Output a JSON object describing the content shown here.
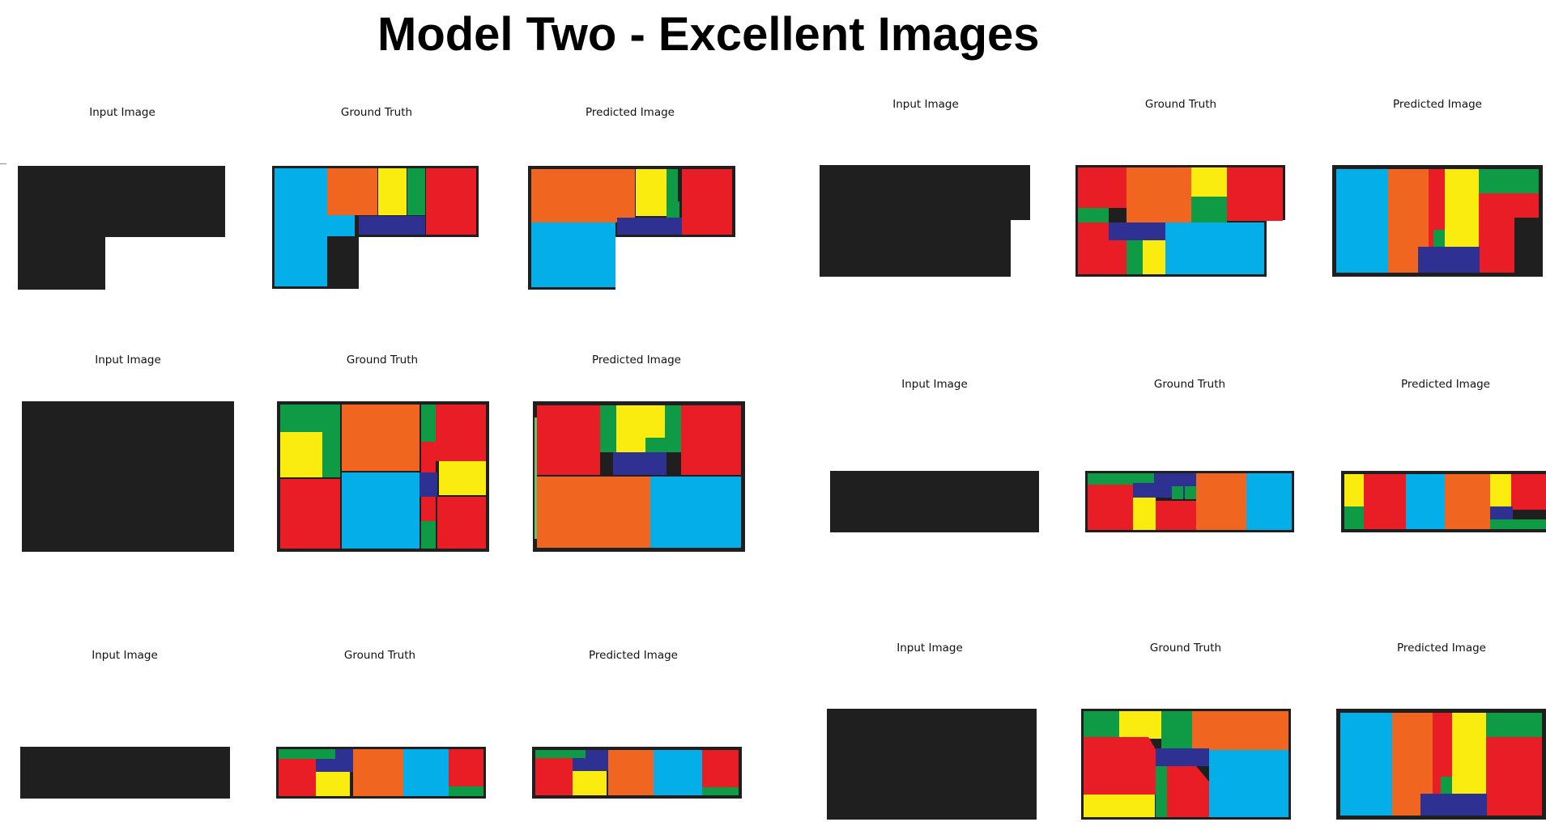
{
  "title": "Model Two - Excellent Images",
  "labels": {
    "input": "Input Image",
    "ground_truth": "Ground Truth",
    "predicted": "Predicted Image"
  },
  "colors": {
    "wall": "#1f1f1f",
    "red": "#e81d25",
    "orange": "#f0651f",
    "yellow": "#fbec0f",
    "green": "#0f9a45",
    "blue": "#03aee9",
    "navy": "#2e3192",
    "background": "#ffffff"
  },
  "examples_count": 6
}
